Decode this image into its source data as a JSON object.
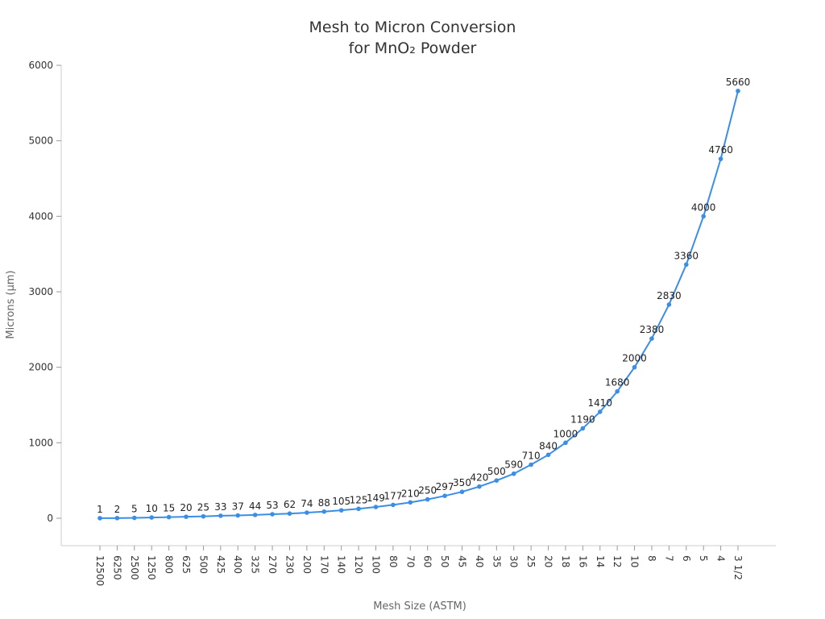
{
  "chart_data": {
    "type": "line",
    "title": [
      "Mesh to Micron Conversion",
      "for MnO₂ Powder"
    ],
    "xlabel": "Mesh Size (ASTM)",
    "ylabel": "Microns (µm)",
    "ylim": [
      0,
      6000
    ],
    "yticks": [
      0,
      1000,
      2000,
      3000,
      4000,
      5000,
      6000
    ],
    "grid": false,
    "line_color": "#3a8ee6",
    "categories": [
      "12500",
      "6250",
      "2500",
      "1250",
      "800",
      "625",
      "500",
      "425",
      "400",
      "325",
      "270",
      "230",
      "200",
      "170",
      "140",
      "120",
      "100",
      "80",
      "70",
      "60",
      "50",
      "45",
      "40",
      "35",
      "30",
      "25",
      "20",
      "18",
      "16",
      "14",
      "12",
      "10",
      "8",
      "7",
      "6",
      "5",
      "4",
      "3 1/2"
    ],
    "values": [
      1,
      2,
      5,
      10,
      15,
      20,
      25,
      33,
      37,
      44,
      53,
      62,
      74,
      88,
      105,
      125,
      149,
      177,
      210,
      250,
      297,
      350,
      420,
      500,
      590,
      710,
      840,
      1000,
      1190,
      1410,
      1680,
      2000,
      2380,
      2830,
      3360,
      4000,
      4760,
      5660
    ]
  }
}
